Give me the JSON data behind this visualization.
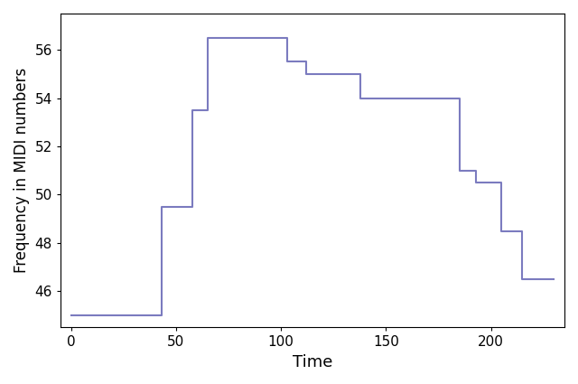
{
  "x": [
    0,
    43,
    43,
    58,
    58,
    65,
    65,
    103,
    103,
    112,
    112,
    138,
    138,
    185,
    185,
    193,
    193,
    205,
    205,
    215,
    215,
    230
  ],
  "y": [
    45,
    45,
    49.5,
    49.5,
    53.5,
    53.5,
    56.5,
    56.5,
    55.5,
    55.5,
    55,
    55,
    54,
    54,
    51,
    51,
    50.5,
    50.5,
    48.5,
    48.5,
    46.5,
    46.5
  ],
  "line_color": "#7b7bbf",
  "linewidth": 1.5,
  "xlabel": "Time",
  "ylabel": "Frequency in MIDI numbers",
  "xlim": [
    -5,
    235
  ],
  "ylim": [
    44.5,
    57.5
  ],
  "xticks": [
    0,
    50,
    100,
    150,
    200
  ],
  "yticks": [
    46,
    48,
    50,
    52,
    54,
    56
  ],
  "xlabel_fontsize": 13,
  "ylabel_fontsize": 12,
  "tick_fontsize": 11,
  "background_color": "#ffffff"
}
